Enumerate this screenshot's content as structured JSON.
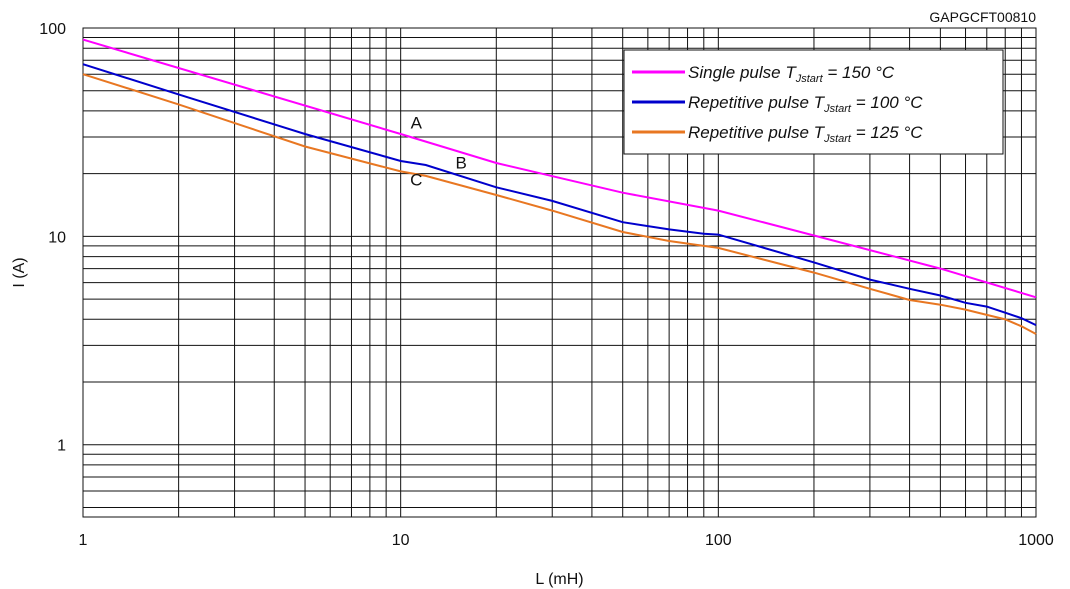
{
  "chart_data": {
    "type": "line",
    "code": "GAPGCFT00810",
    "xlabel": "L (mH)",
    "ylabel": "I (A)",
    "x_scale": "log",
    "y_scale": "log",
    "xlim": [
      1,
      1000
    ],
    "ylim": [
      0.45,
      100
    ],
    "x_ticks": [
      1,
      10,
      100,
      1000
    ],
    "x_tick_labels": [
      "1",
      "10",
      "100",
      "1000"
    ],
    "y_ticks": [
      1,
      10,
      100
    ],
    "y_tick_labels": [
      "1",
      "10",
      "100"
    ],
    "grid": true,
    "legend_position": "top-right",
    "legend": [
      {
        "label": "Single pulse T",
        "sub": "Jstart",
        "suffix": " = 150 °C"
      },
      {
        "label": "Repetitive pulse T",
        "sub": "Jstart",
        "suffix": " = 100 °C"
      },
      {
        "label": "Repetitive pulse T",
        "sub": "Jstart",
        "suffix": " = 125 °C"
      }
    ],
    "annotations": [
      {
        "text": "A",
        "x": 11.2,
        "y": 33
      },
      {
        "text": "B",
        "x": 15.5,
        "y": 21.2
      },
      {
        "text": "C",
        "x": 11.2,
        "y": 17.5
      }
    ],
    "series": [
      {
        "color": "#ff00ff",
        "x": [
          1,
          10,
          20,
          50,
          100,
          200,
          500,
          1000
        ],
        "y": [
          88,
          31,
          22.5,
          16.2,
          13.3,
          10.1,
          7.0,
          5.1
        ]
      },
      {
        "color": "#0000cc",
        "x": [
          1,
          2,
          5,
          10,
          12,
          20,
          30,
          50,
          70,
          90,
          100,
          200,
          300,
          400,
          500,
          600,
          700,
          800,
          900,
          1000
        ],
        "y": [
          67,
          48,
          31,
          23,
          22,
          17.2,
          14.8,
          11.7,
          10.8,
          10.3,
          10.2,
          7.5,
          6.2,
          5.6,
          5.2,
          4.8,
          4.6,
          4.3,
          4.05,
          3.75
        ]
      },
      {
        "color": "#e87722",
        "x": [
          1,
          2,
          5,
          10,
          12,
          20,
          30,
          50,
          70,
          90,
          100,
          200,
          300,
          400,
          500,
          600,
          700,
          800,
          900,
          1000
        ],
        "y": [
          60,
          43,
          27,
          20.5,
          19.5,
          15.8,
          13.3,
          10.5,
          9.5,
          9.0,
          8.8,
          6.7,
          5.6,
          4.95,
          4.7,
          4.45,
          4.2,
          4.0,
          3.7,
          3.4
        ]
      }
    ]
  }
}
